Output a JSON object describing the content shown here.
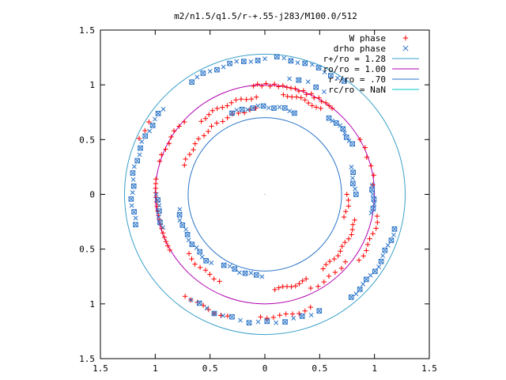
{
  "chart_data": {
    "type": "scatter",
    "title": "m2/n1.5/q1.5/r-+.55-j283/M100.0/512",
    "xlim": [
      -1.5,
      1.5
    ],
    "ylim": [
      -1.5,
      1.5
    ],
    "xticks": [
      -1.5,
      -1,
      -0.5,
      0,
      0.5,
      1,
      1.5
    ],
    "xtick_labels": [
      "1.5",
      "1",
      "0.5",
      "0",
      "0.5",
      "1",
      "1.5"
    ],
    "yticks": [
      1.5,
      1,
      0.5,
      0,
      -0.5,
      -1,
      -1.5
    ],
    "ytick_labels": [
      "1.5",
      "1",
      "0.5",
      "0",
      "0.5",
      "1",
      "1.5"
    ],
    "grid": false,
    "legend_position": "top-right",
    "circles": [
      {
        "name": "r+/ro = 1.28",
        "radius": 1.28,
        "color": "#3aa0c8"
      },
      {
        "name": "ro/ro = 1.00",
        "radius": 1.0,
        "color": "#b000b0"
      },
      {
        "name": "r-/ro = .70",
        "radius": 0.7,
        "color": "#2a74c8"
      },
      {
        "name": "rc/ro = NaN",
        "radius": null,
        "color": "#00c8c8"
      }
    ],
    "series": [
      {
        "name": "W phase",
        "marker": "plus",
        "color": "#ff0000",
        "arcs": [
          {
            "r": 1.0,
            "start": 52,
            "end": 96,
            "step": 2.2
          },
          {
            "r": 0.93,
            "start": 57,
            "end": 80,
            "step": 2.5
          },
          {
            "r": 0.89,
            "start": 95,
            "end": 132,
            "step": 3.0
          },
          {
            "r": 0.78,
            "start": 96,
            "end": 160,
            "step": 4.0
          },
          {
            "r": 1.0,
            "start": 138,
            "end": 165,
            "step": 3.5
          },
          {
            "r": 1.0,
            "start": 172,
            "end": 212,
            "step": 2.4
          },
          {
            "r": 0.89,
            "start": 218,
            "end": 245,
            "step": 3.5
          },
          {
            "r": 0.87,
            "start": 276,
            "end": 298,
            "step": 2.5
          },
          {
            "r": 0.86,
            "start": 308,
            "end": 345,
            "step": 3.0
          },
          {
            "r": 0.96,
            "start": 296,
            "end": 322,
            "step": 4.0
          },
          {
            "r": 1.17,
            "start": 232,
            "end": 255,
            "step": 3.0
          },
          {
            "r": 1.12,
            "start": 268,
            "end": 292,
            "step": 3.0
          },
          {
            "r": 1.05,
            "start": 325,
            "end": 350,
            "step": 3.0
          },
          {
            "r": 1.0,
            "start": 5,
            "end": 30,
            "step": 5.0
          },
          {
            "r": 0.76,
            "start": 344,
            "end": 360,
            "step": 4.0
          },
          {
            "r": 1.25,
            "start": 148,
            "end": 158,
            "step": 4.0
          }
        ]
      },
      {
        "name": "drho phase",
        "marker": "cross",
        "color": "#2a74c8",
        "arcs": [
          {
            "r": 1.25,
            "start": 55,
            "end": 85,
            "step": 3.0
          },
          {
            "r": 1.23,
            "start": 90,
            "end": 125,
            "step": 3.0
          },
          {
            "r": 1.21,
            "start": 140,
            "end": 195,
            "step": 2.8
          },
          {
            "r": 0.98,
            "start": 180,
            "end": 200,
            "step": 3.0
          },
          {
            "r": 0.8,
            "start": 70,
            "end": 112,
            "step": 3.5
          },
          {
            "r": 0.8,
            "start": 190,
            "end": 232,
            "step": 3.5
          },
          {
            "r": 0.74,
            "start": 240,
            "end": 270,
            "step": 4.0
          },
          {
            "r": 0.92,
            "start": 30,
            "end": 50,
            "step": 2.5
          },
          {
            "r": 0.99,
            "start": 350,
            "end": 365,
            "step": 2.5
          },
          {
            "r": 0.82,
            "start": 0,
            "end": 20,
            "step": 3.5
          },
          {
            "r": 1.22,
            "start": 310,
            "end": 345,
            "step": 2.5
          },
          {
            "r": 1.17,
            "start": 235,
            "end": 295,
            "step": 4.0
          },
          {
            "r": 1.09,
            "start": 60,
            "end": 80,
            "step": 4.5
          }
        ]
      }
    ]
  }
}
